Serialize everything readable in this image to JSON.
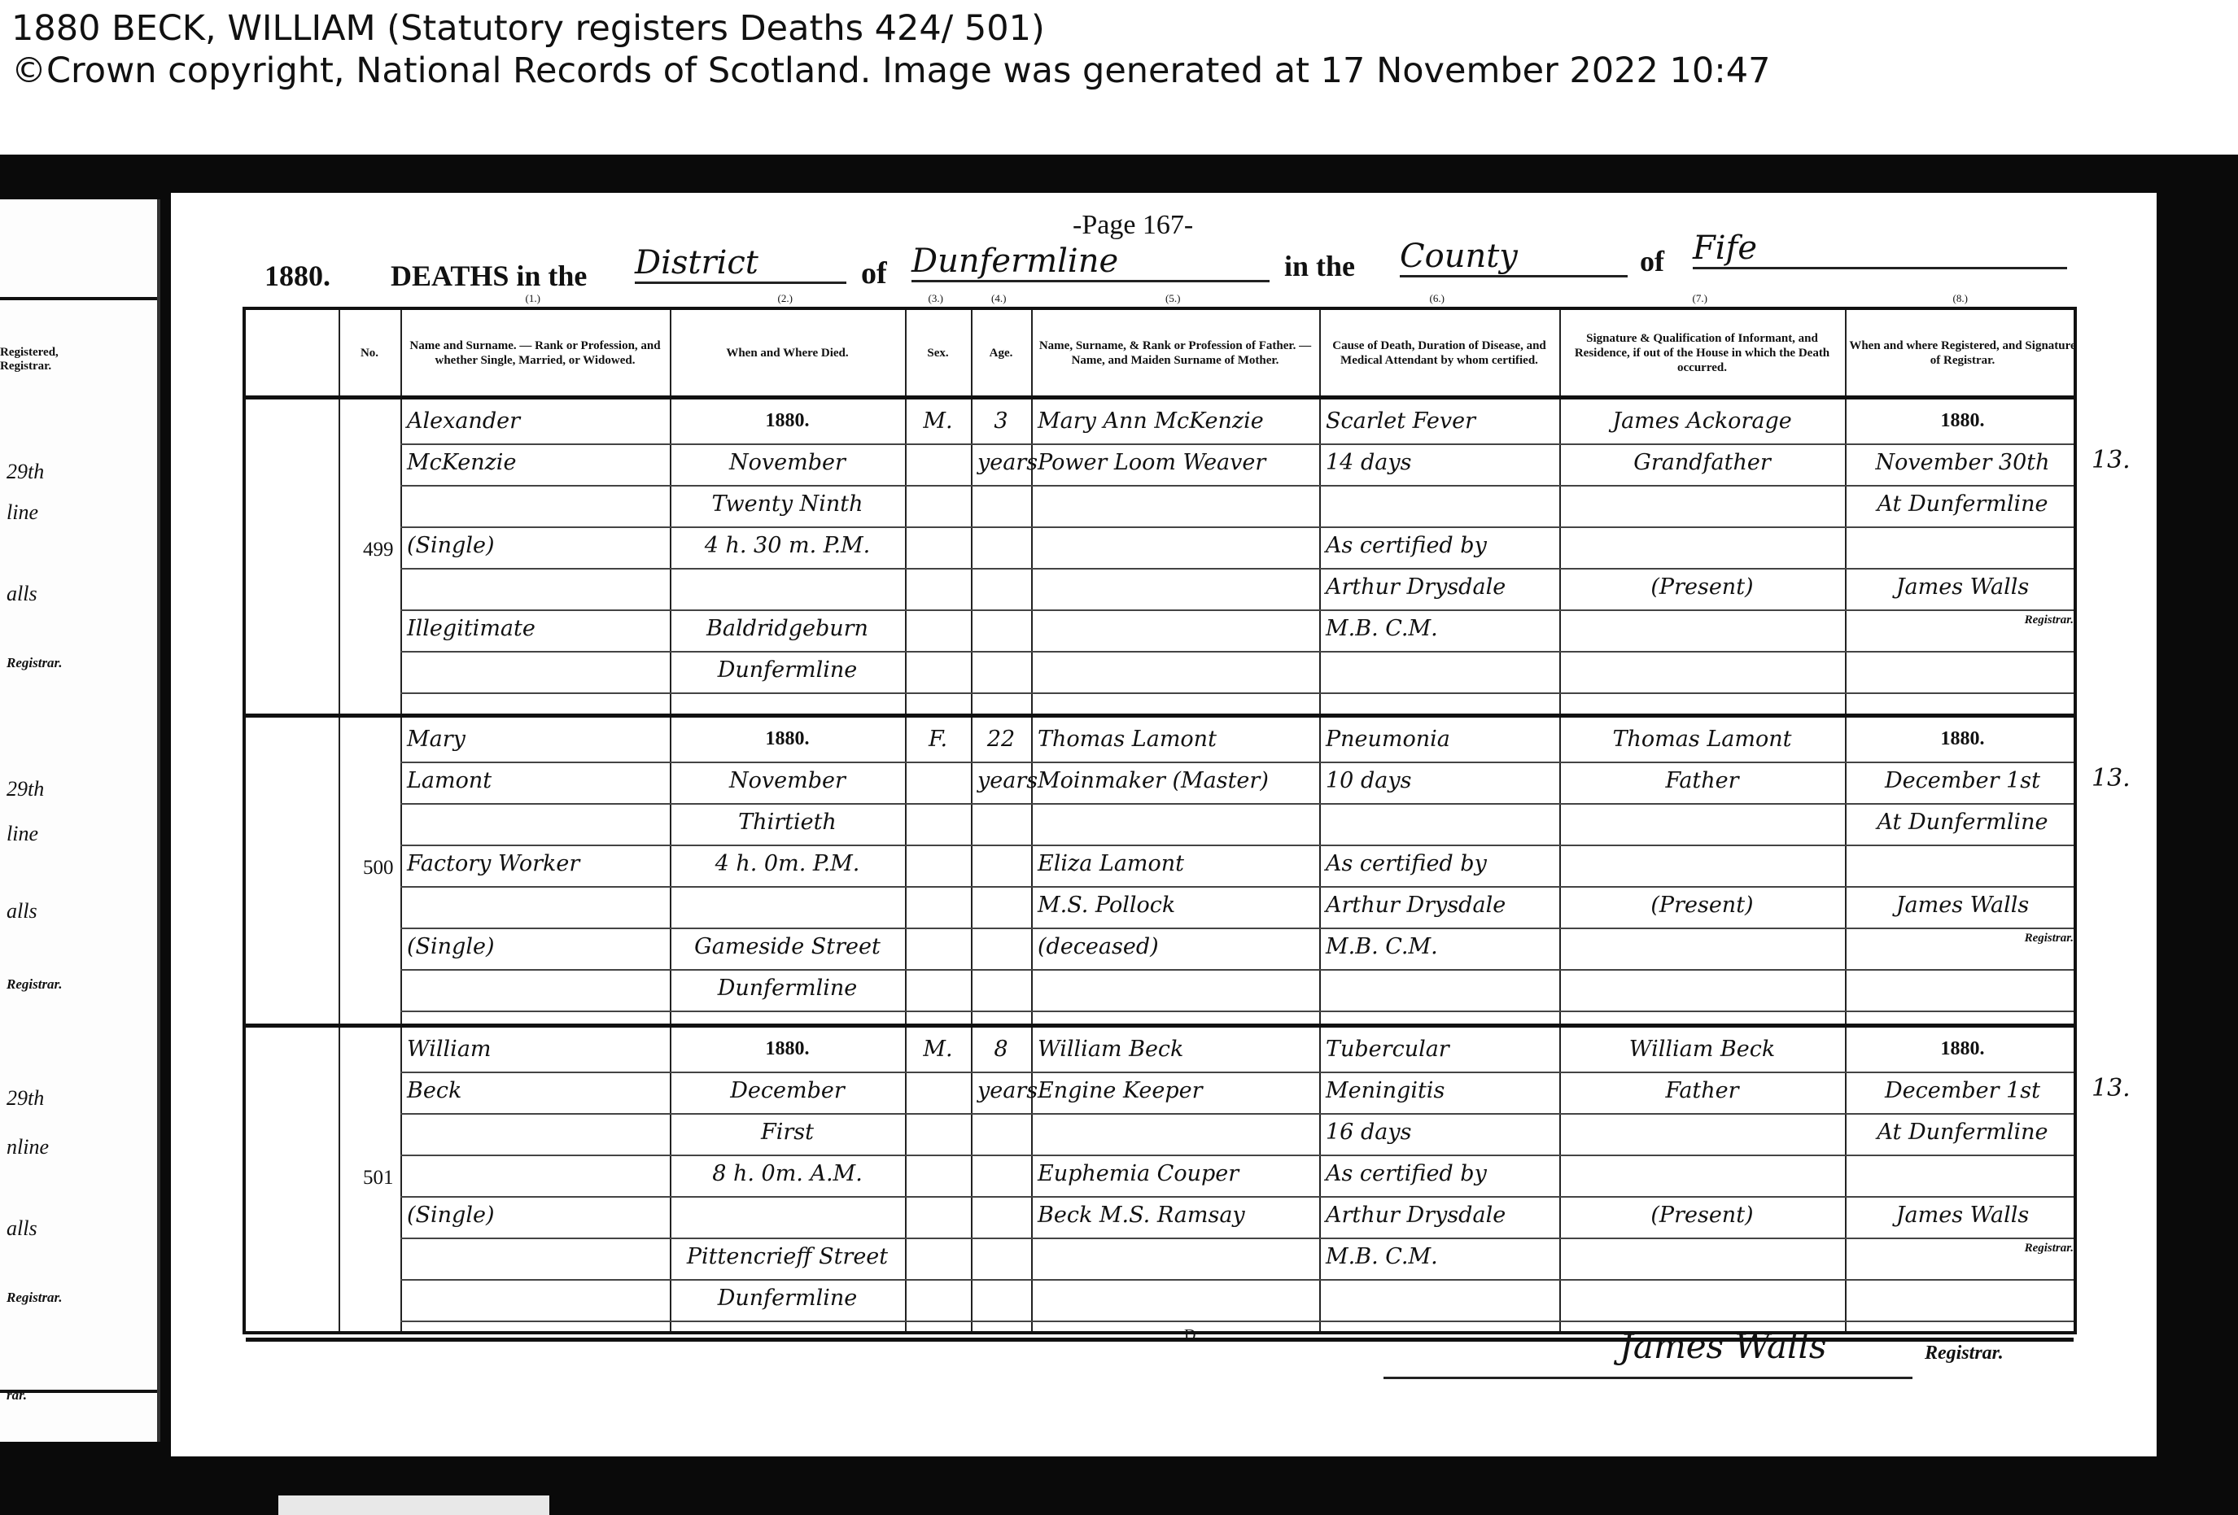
{
  "caption": {
    "title": "1880 BECK, WILLIAM (Statutory registers Deaths 424/   501)",
    "copyright": "©Crown copyright, National Records of Scotland. Image was generated at  17 November 2022 10:47"
  },
  "register": {
    "page_label": "-Page 167-",
    "year": "1880.",
    "deaths_in_the": "DEATHS in the",
    "district_type": "District",
    "of1": "of",
    "district_name": "Dunfermline",
    "in_the": "in the",
    "county_type": "County",
    "of2": "of",
    "county_name": "Fife",
    "columns": [
      {
        "label": "No."
      },
      {
        "label": "Name and Surname. — Rank or Profession, and whether Single, Married, or Widowed.",
        "num": "(1.)"
      },
      {
        "label": "When and Where Died.",
        "num": "(2.)"
      },
      {
        "label": "Sex.",
        "num": "(3.)"
      },
      {
        "label": "Age.",
        "num": "(4.)"
      },
      {
        "label": "Name, Surname, & Rank or Profession of Father. — Name, and Maiden Surname of Mother.",
        "num": "(5.)"
      },
      {
        "label": "Cause of Death, Duration of Disease, and Medical Attendant by whom certified.",
        "num": "(6.)"
      },
      {
        "label": "Signature & Qualification of Informant, and Residence, if out of the House in which the Death occurred.",
        "num": "(7.)"
      },
      {
        "label": "When and where Registered, and Signature of Registrar.",
        "num": "(8.)"
      }
    ],
    "entries": [
      {
        "no": "499",
        "name": [
          "Alexander",
          "McKenzie",
          "",
          "(Single)",
          "",
          "Illegitimate"
        ],
        "when_where": [
          "1880.",
          "November",
          "Twenty Ninth",
          "4 h. 30 m. P.M.",
          "",
          "Baldridgeburn",
          "Dunfermline"
        ],
        "sex": [
          "M."
        ],
        "age": [
          "3",
          "years"
        ],
        "parents": [
          "Mary Ann McKenzie",
          "Power Loom Weaver"
        ],
        "cause": [
          "Scarlet Fever",
          "14 days",
          "",
          "As certified by",
          "Arthur Drysdale",
          "M.B. C.M."
        ],
        "informant": [
          "James Ackorage",
          "Grandfather",
          "",
          "",
          "(Present)"
        ],
        "registered": [
          "1880.",
          "November 30th",
          "At Dunfermline",
          "",
          "James Walls"
        ],
        "registrar_label": "Registrar.",
        "margin": "13."
      },
      {
        "no": "500",
        "name": [
          "Mary",
          "Lamont",
          "",
          "Factory Worker",
          "",
          "(Single)"
        ],
        "when_where": [
          "1880.",
          "November",
          "Thirtieth",
          "4 h. 0m. P.M.",
          "",
          "Gameside Street",
          "Dunfermline"
        ],
        "sex": [
          "F."
        ],
        "age": [
          "22",
          "years"
        ],
        "parents": [
          "Thomas Lamont",
          "Moinmaker (Master)",
          "",
          "Eliza Lamont",
          "M.S. Pollock",
          "(deceased)"
        ],
        "cause": [
          "Pneumonia",
          "10 days",
          "",
          "As certified by",
          "Arthur Drysdale",
          "M.B. C.M."
        ],
        "informant": [
          "Thomas Lamont",
          "Father",
          "",
          "",
          "(Present)"
        ],
        "registered": [
          "1880.",
          "December 1st",
          "At Dunfermline",
          "",
          "James Walls"
        ],
        "registrar_label": "Registrar.",
        "margin": "13."
      },
      {
        "no": "501",
        "name": [
          "William",
          "Beck",
          "",
          "",
          "(Single)"
        ],
        "when_where": [
          "1880.",
          "December",
          "First",
          "8 h. 0m. A.M.",
          "",
          "Pittencrieff Street",
          "Dunfermline"
        ],
        "sex": [
          "M."
        ],
        "age": [
          "8",
          "years"
        ],
        "parents": [
          "William Beck",
          "Engine Keeper",
          "",
          "Euphemia Couper",
          "Beck M.S. Ramsay"
        ],
        "cause": [
          "Tubercular",
          "Meningitis",
          "16 days",
          "As certified by",
          "Arthur Drysdale",
          "M.B. C.M."
        ],
        "informant": [
          "William Beck",
          "Father",
          "",
          "",
          "(Present)"
        ],
        "registered": [
          "1880.",
          "December 1st",
          "At Dunfermline",
          "",
          "James Walls"
        ],
        "registrar_label": "Registrar.",
        "margin": "13."
      }
    ],
    "footer": {
      "letter": "D",
      "signature": "James Walls",
      "registrar_label": "Registrar."
    }
  },
  "left_page": {
    "header": "Registered, Registrar.",
    "fragments": [
      "29th",
      "line",
      "alls",
      "Registrar.",
      "29th",
      "line",
      "alls",
      "Registrar.",
      "29th",
      "nline",
      "alls",
      "Registrar.",
      "rar."
    ]
  }
}
